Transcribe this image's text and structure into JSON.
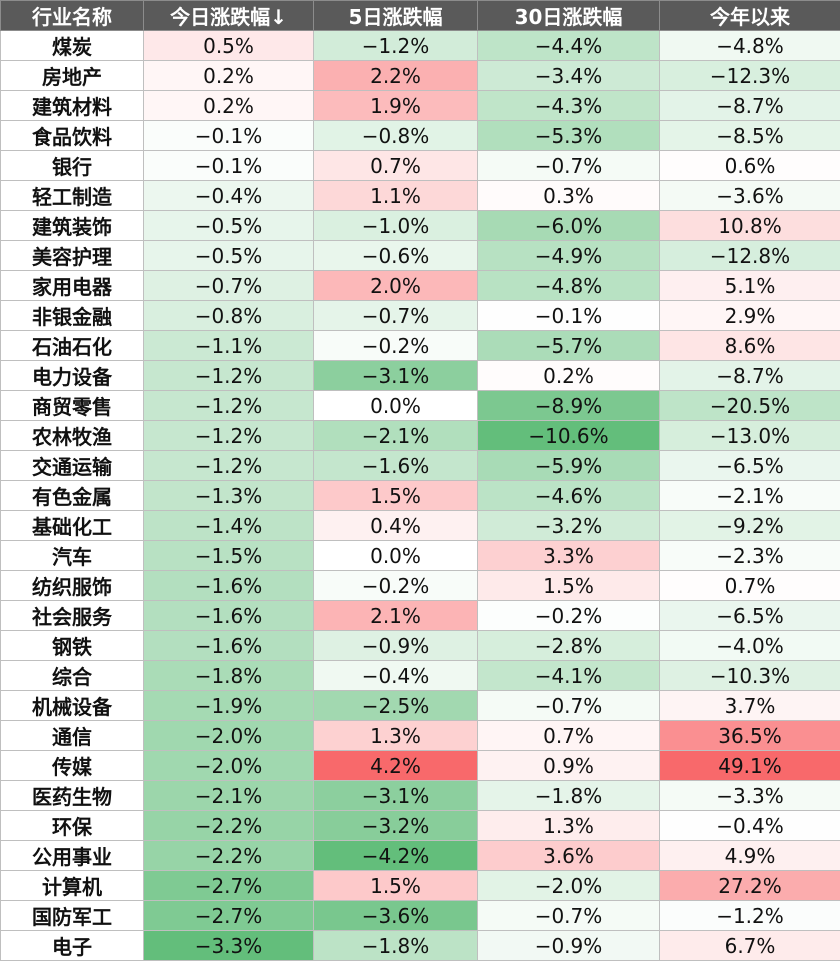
{
  "headers": [
    "行业名称",
    "今日涨跌幅↓",
    "5日涨跌幅",
    "30日涨跌幅",
    "今年以来"
  ],
  "rows": [
    {
      "name": "煤炭",
      "today": "0.5%",
      "d5": "−1.2%",
      "d30": "−4.4%",
      "ytd": "−4.8%"
    },
    {
      "name": "房地产",
      "today": "0.2%",
      "d5": "2.2%",
      "d30": "−3.4%",
      "ytd": "−12.3%"
    },
    {
      "name": "建筑材料",
      "today": "0.2%",
      "d5": "1.9%",
      "d30": "−4.3%",
      "ytd": "−8.7%"
    },
    {
      "name": "食品饮料",
      "today": "−0.1%",
      "d5": "−0.8%",
      "d30": "−5.3%",
      "ytd": "−8.5%"
    },
    {
      "name": "银行",
      "today": "−0.1%",
      "d5": "0.7%",
      "d30": "−0.7%",
      "ytd": "0.6%"
    },
    {
      "name": "轻工制造",
      "today": "−0.4%",
      "d5": "1.1%",
      "d30": "0.3%",
      "ytd": "−3.6%"
    },
    {
      "name": "建筑装饰",
      "today": "−0.5%",
      "d5": "−1.0%",
      "d30": "−6.0%",
      "ytd": "10.8%"
    },
    {
      "name": "美容护理",
      "today": "−0.5%",
      "d5": "−0.6%",
      "d30": "−4.9%",
      "ytd": "−12.8%"
    },
    {
      "name": "家用电器",
      "today": "−0.7%",
      "d5": "2.0%",
      "d30": "−4.8%",
      "ytd": "5.1%"
    },
    {
      "name": "非银金融",
      "today": "−0.8%",
      "d5": "−0.7%",
      "d30": "−0.1%",
      "ytd": "2.9%"
    },
    {
      "name": "石油石化",
      "today": "−1.1%",
      "d5": "−0.2%",
      "d30": "−5.7%",
      "ytd": "8.6%"
    },
    {
      "name": "电力设备",
      "today": "−1.2%",
      "d5": "−3.1%",
      "d30": "0.2%",
      "ytd": "−8.7%"
    },
    {
      "name": "商贸零售",
      "today": "−1.2%",
      "d5": "0.0%",
      "d30": "−8.9%",
      "ytd": "−20.5%"
    },
    {
      "name": "农林牧渔",
      "today": "−1.2%",
      "d5": "−2.1%",
      "d30": "−10.6%",
      "ytd": "−13.0%"
    },
    {
      "name": "交通运输",
      "today": "−1.2%",
      "d5": "−1.6%",
      "d30": "−5.9%",
      "ytd": "−6.5%"
    },
    {
      "name": "有色金属",
      "today": "−1.3%",
      "d5": "1.5%",
      "d30": "−4.6%",
      "ytd": "−2.1%"
    },
    {
      "name": "基础化工",
      "today": "−1.4%",
      "d5": "0.4%",
      "d30": "−3.2%",
      "ytd": "−9.2%"
    },
    {
      "name": "汽车",
      "today": "−1.5%",
      "d5": "0.0%",
      "d30": "3.3%",
      "ytd": "−2.3%"
    },
    {
      "name": "纺织服饰",
      "today": "−1.6%",
      "d5": "−0.2%",
      "d30": "1.5%",
      "ytd": "0.7%"
    },
    {
      "name": "社会服务",
      "today": "−1.6%",
      "d5": "2.1%",
      "d30": "−0.2%",
      "ytd": "−6.5%"
    },
    {
      "name": "钢铁",
      "today": "−1.6%",
      "d5": "−0.9%",
      "d30": "−2.8%",
      "ytd": "−4.0%"
    },
    {
      "name": "综合",
      "today": "−1.8%",
      "d5": "−0.4%",
      "d30": "−4.1%",
      "ytd": "−10.3%"
    },
    {
      "name": "机械设备",
      "today": "−1.9%",
      "d5": "−2.5%",
      "d30": "−0.7%",
      "ytd": "3.7%"
    },
    {
      "name": "通信",
      "today": "−2.0%",
      "d5": "1.3%",
      "d30": "0.7%",
      "ytd": "36.5%"
    },
    {
      "name": "传媒",
      "today": "−2.0%",
      "d5": "4.2%",
      "d30": "0.9%",
      "ytd": "49.1%"
    },
    {
      "name": "医药生物",
      "today": "−2.1%",
      "d5": "−3.1%",
      "d30": "−1.8%",
      "ytd": "−3.3%"
    },
    {
      "name": "环保",
      "today": "−2.2%",
      "d5": "−3.2%",
      "d30": "1.3%",
      "ytd": "−0.4%"
    },
    {
      "name": "公用事业",
      "today": "−2.2%",
      "d5": "−4.2%",
      "d30": "3.6%",
      "ytd": "4.9%"
    },
    {
      "name": "计算机",
      "today": "−2.7%",
      "d5": "1.5%",
      "d30": "−2.0%",
      "ytd": "27.2%"
    },
    {
      "name": "国防军工",
      "today": "−2.7%",
      "d5": "−3.6%",
      "d30": "−0.7%",
      "ytd": "−1.2%"
    },
    {
      "name": "电子",
      "today": "−3.3%",
      "d5": "−1.8%",
      "d30": "−0.9%",
      "ytd": "6.7%"
    }
  ],
  "colors": {
    "header_bg": "#5a5a5a",
    "positive_max": "#f8696b",
    "negative_max": "#63be7b",
    "neutral": "#ffffff"
  }
}
